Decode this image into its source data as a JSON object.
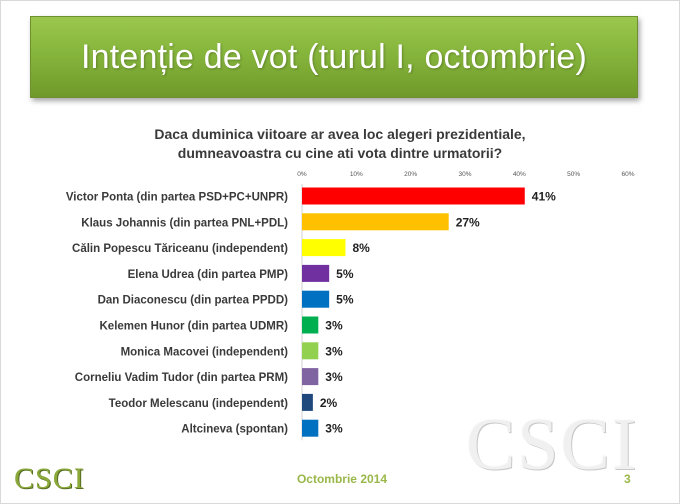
{
  "slide": {
    "title": "Intenție de vot (turul I, octombrie)",
    "footer_date": "Octombrie 2014",
    "page_number": "3",
    "logo_text": "CSCI",
    "watermark_text": "CSCI",
    "colors": {
      "title_green": "#86b53c",
      "footer_green": "#9ab84a"
    }
  },
  "chart_data": {
    "type": "bar",
    "orientation": "horizontal",
    "title": "Daca duminica viitoare ar avea loc alegeri prezidentiale, dumneavoastra cu cine ati vota dintre urmatorii?",
    "title_lines": [
      "Daca duminica viitoare ar avea loc alegeri prezidentiale,",
      "dumneavoastra cu cine ati vota dintre urmatorii?"
    ],
    "xlim": [
      0,
      60
    ],
    "ticks": [
      "0%",
      "10%",
      "20%",
      "30%",
      "40%",
      "50%",
      "60%"
    ],
    "tick_values": [
      0,
      10,
      20,
      30,
      40,
      50,
      60
    ],
    "categories": [
      "Victor Ponta (din partea PSD+PC+UNPR)",
      "Klaus Johannis (din partea PNL+PDL)",
      "Călin Popescu Tăriceanu (independent)",
      "Elena Udrea (din partea PMP)",
      "Dan Diaconescu (din partea PPDD)",
      "Kelemen Hunor (din partea UDMR)",
      "Monica Macovei (independent)",
      "Corneliu Vadim Tudor (din partea PRM)",
      "Teodor Melescanu (independent)",
      "Altcineva (spontan)"
    ],
    "values": [
      41,
      27,
      8,
      5,
      5,
      3,
      3,
      3,
      2,
      3
    ],
    "labels": [
      "41%",
      "27%",
      "8%",
      "5%",
      "5%",
      "3%",
      "3%",
      "3%",
      "2%",
      "3%"
    ],
    "colors": [
      "#ff0000",
      "#ffc000",
      "#ffff00",
      "#7030a0",
      "#0070c0",
      "#00b050",
      "#92d050",
      "#8064a2",
      "#1f497d",
      "#0070c0"
    ],
    "grid": false,
    "legend": "none"
  }
}
